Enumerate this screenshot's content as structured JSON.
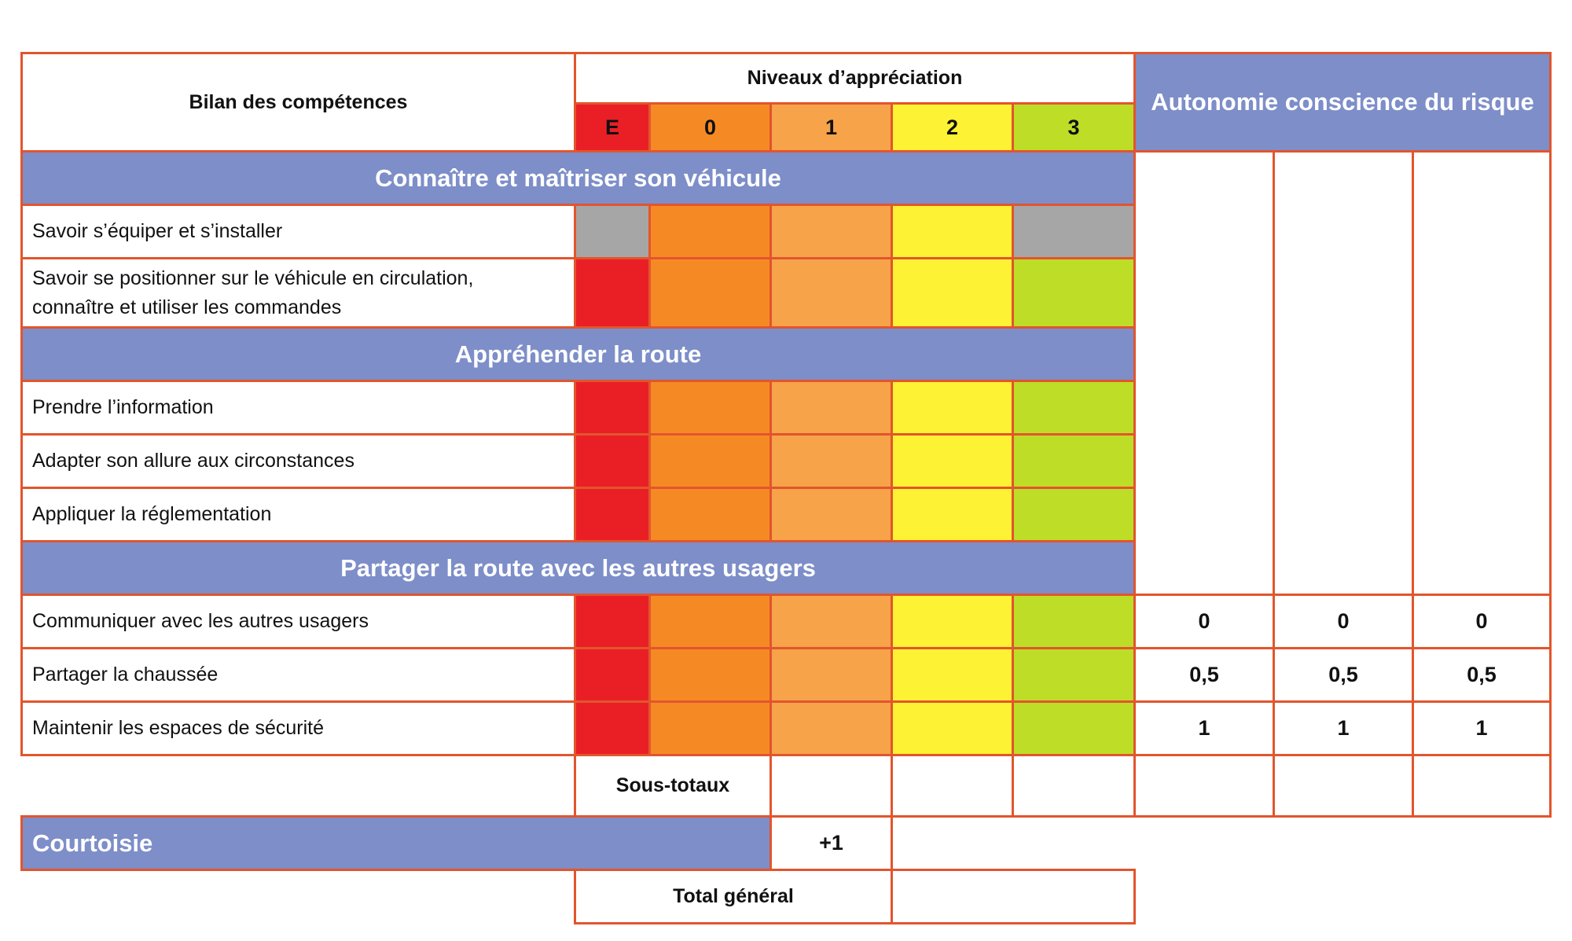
{
  "colors": {
    "border": "#e2552d",
    "band": "#7d8ec9",
    "E": "#ea1f26",
    "0": "#f58a25",
    "1": "#f6a34a",
    "2": "#fdf234",
    "3": "#bddd27",
    "disabled": "#a6a6a6"
  },
  "header": {
    "title": "Bilan des compétences",
    "levels_title": "Niveaux d’appréciation",
    "levels": [
      "E",
      "0",
      "1",
      "2",
      "3"
    ],
    "autonomy_title": "Autonomie conscience du risque"
  },
  "sections": [
    {
      "title": "Connaître et maîtriser son véhicule",
      "rows": [
        "Savoir s’équiper et s’installer",
        "Savoir se positionner sur le véhicule en circulation, connaître et utiliser les commandes"
      ]
    },
    {
      "title": "Appréhender la route",
      "rows": [
        "Prendre l’information",
        "Adapter son allure aux circonstances",
        "Appliquer la réglementation"
      ]
    },
    {
      "title": "Partager la route avec les autres usagers",
      "rows": [
        "Communiquer avec les autres usagers",
        "Partager la chaussée",
        "Maintenir les espaces de sécurité"
      ]
    }
  ],
  "autonomy_values": [
    [
      "0",
      "0",
      "0"
    ],
    [
      "0,5",
      "0,5",
      "0,5"
    ],
    [
      "1",
      "1",
      "1"
    ]
  ],
  "footer": {
    "subtotals": "Sous-totaux",
    "courtesy": "Courtoisie",
    "courtesy_bonus": "+1",
    "grand_total": "Total général"
  }
}
